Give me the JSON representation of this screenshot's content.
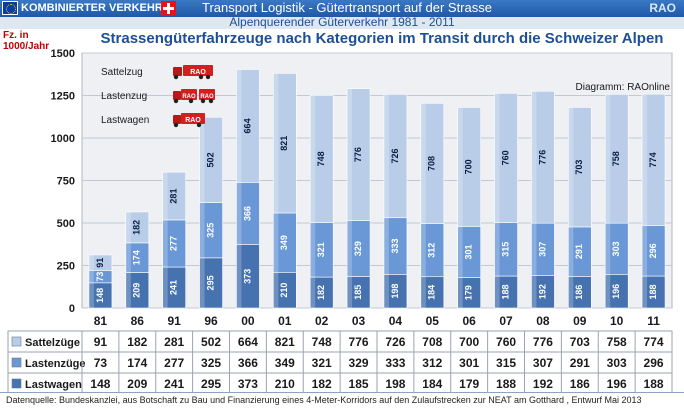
{
  "header": {
    "brand": "KOMBINIERTER VERKEHR",
    "title": "Transport Logistik - Gütertransport auf der Strasse",
    "right_label": "RAO",
    "subtitle": "Alpenquerender Güterverkehr 1981 - 2011"
  },
  "chart_data": {
    "type": "bar",
    "stacked": true,
    "title": "Strassengüterfahrzeuge nach Kategorien im Transit durch die Schweizer Alpen",
    "ylabel": "Fz. in 1000/Jahr",
    "ylim": [
      0,
      1500
    ],
    "yticks": [
      "0",
      "250",
      "500",
      "750",
      "1000",
      "1250",
      "1500"
    ],
    "grid": true,
    "legend_position": "top-left",
    "categories": [
      "81",
      "86",
      "91",
      "96",
      "00",
      "01",
      "02",
      "03",
      "04",
      "05",
      "06",
      "07",
      "08",
      "09",
      "10",
      "11"
    ],
    "series": [
      {
        "name": "Lastwagen",
        "color": "#4672b0",
        "values": [
          148,
          209,
          241,
          295,
          373,
          210,
          182,
          185,
          198,
          184,
          179,
          188,
          192,
          186,
          196,
          188
        ]
      },
      {
        "name": "Lastenzüge",
        "color": "#6a98d6",
        "values": [
          73,
          174,
          277,
          325,
          366,
          349,
          321,
          329,
          333,
          312,
          301,
          315,
          307,
          291,
          303,
          296
        ]
      },
      {
        "name": "Sattelzüge",
        "color": "#b9cde8",
        "values": [
          91,
          182,
          281,
          502,
          664,
          821,
          748,
          776,
          726,
          708,
          700,
          760,
          776,
          703,
          758,
          774
        ]
      }
    ],
    "annotation": "Diagramm: RAOnline",
    "truck_legend": [
      "Sattelzug",
      "Lastenzug",
      "Lastwagen"
    ]
  },
  "footer": {
    "source": "Datenquelle: Bundeskanzlei, aus Botschaft zu Bau und Finanzierung eines 4-Meter-Korridors auf den Zulaufstrecken zur NEAT am Gotthard , Entwurf Mai 2013"
  }
}
